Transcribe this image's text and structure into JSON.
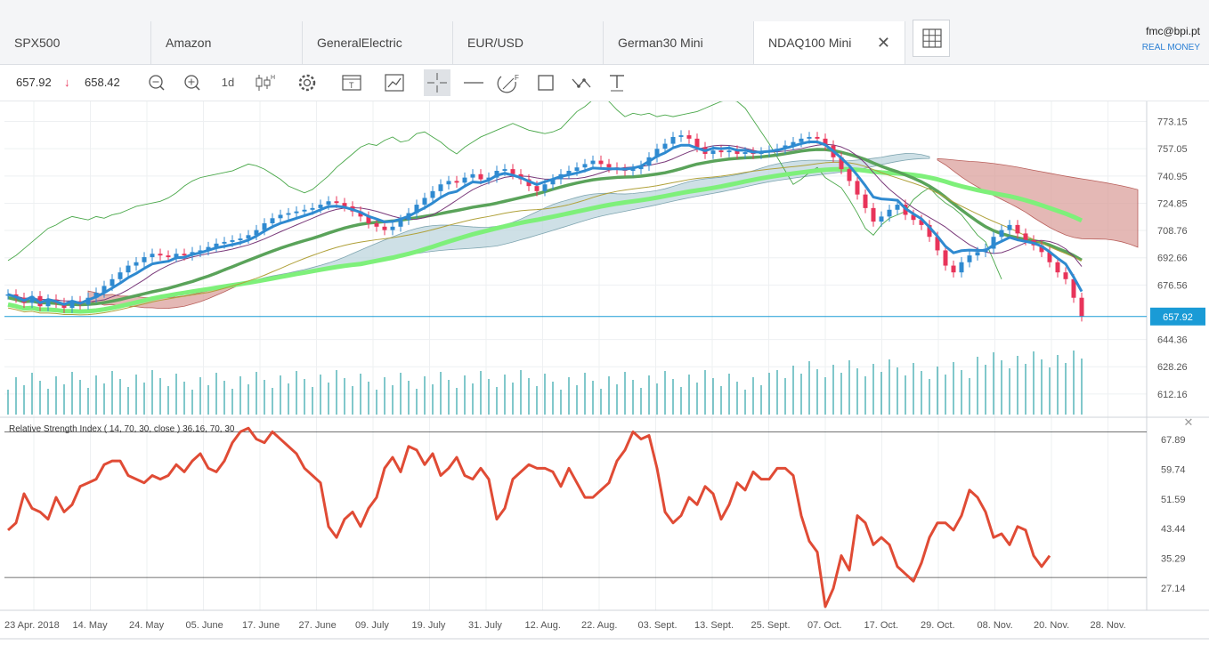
{
  "tabs": [
    {
      "label": "SPX500"
    },
    {
      "label": "Amazon"
    },
    {
      "label": "GeneralElectric"
    },
    {
      "label": "EUR/USD"
    },
    {
      "label": "German30 Mini"
    },
    {
      "label": "NDAQ100 Mini",
      "active": true
    }
  ],
  "user": {
    "email": "fmc@bpi.pt",
    "mode": "REAL MONEY"
  },
  "toolbar": {
    "bid": "657.92",
    "ask": "658.42",
    "timeframe": "1d",
    "arrow": "↓"
  },
  "icons": {
    "zoom_out": "zoom-out-icon",
    "zoom_in": "zoom-in-icon",
    "candles": "candlestick-icon",
    "settings": "gear-icon",
    "template": "template-icon",
    "indicators": "indicator-icon",
    "crosshair": "crosshair-icon",
    "hline": "horizontal-line-icon",
    "fib": "fibonacci-icon",
    "rect": "rectangle-icon",
    "trend": "trendline-icon",
    "text": "text-tool-icon",
    "grid": "grid-layout-icon",
    "close": "close-icon"
  },
  "colors": {
    "up": "#2f8ad0",
    "down": "#e8345a",
    "rsi": "#e04b35",
    "last_price": "#1a9bd6",
    "volume": "#1a9aa0"
  },
  "chart_data": {
    "type": "candlestick",
    "symbol": "NDAQ100 Mini",
    "last_price": 657.92,
    "price_axis": {
      "ylim": [
        600,
        785
      ],
      "ticks": [
        "773.15",
        "757.05",
        "740.95",
        "724.85",
        "708.76",
        "692.66",
        "676.56",
        "657.92",
        "644.36",
        "628.26",
        "612.16"
      ]
    },
    "x_axis": {
      "ticks": [
        "23 Apr. 2018",
        "14. May",
        "24. May",
        "05. June",
        "17. June",
        "27. June",
        "09. July",
        "19. July",
        "31. July",
        "12. Aug.",
        "22. Aug.",
        "03. Sept.",
        "13. Sept.",
        "25. Sept.",
        "07. Oct.",
        "17. Oct.",
        "29. Oct.",
        "08. Nov.",
        "20. Nov.",
        "28. Nov."
      ]
    },
    "close": [
      671,
      669,
      666,
      670,
      664,
      668,
      666,
      663,
      667,
      665,
      669,
      672,
      676,
      680,
      684,
      688,
      690,
      693,
      695,
      694,
      693,
      695,
      694,
      696,
      697,
      699,
      701,
      702,
      703,
      704,
      706,
      709,
      713,
      716,
      718,
      719,
      720,
      721,
      722,
      724,
      726,
      725,
      723,
      720,
      717,
      713,
      711,
      709,
      711,
      715,
      719,
      724,
      728,
      732,
      736,
      738,
      737,
      740,
      742,
      739,
      740,
      744,
      745,
      742,
      739,
      735,
      732,
      736,
      739,
      742,
      744,
      746,
      748,
      750,
      748,
      746,
      745,
      744,
      745,
      747,
      752,
      757,
      760,
      764,
      765,
      763,
      758,
      754,
      756,
      755,
      756,
      754,
      755,
      754,
      755,
      756,
      757,
      759,
      761,
      763,
      764,
      763,
      759,
      752,
      745,
      738,
      730,
      722,
      714,
      717,
      721,
      724,
      718,
      715,
      712,
      705,
      697,
      688,
      684,
      690,
      694,
      696,
      698,
      705,
      709,
      712,
      707,
      703,
      700,
      696,
      690,
      684,
      680,
      669,
      658
    ],
    "rsi": {
      "label": "Relative Strength Index ( 14, 70, 30, close ) 36.16, 70, 30",
      "levels": [
        70,
        30
      ],
      "ylim": [
        21,
        74
      ],
      "ticks": [
        "67.89",
        "59.74",
        "51.59",
        "43.44",
        "35.29",
        "27.14"
      ],
      "values": [
        43,
        45,
        53,
        49,
        48,
        46,
        52,
        48,
        50,
        55,
        56,
        57,
        61,
        62,
        62,
        58,
        57,
        56,
        58,
        57,
        58,
        61,
        59,
        62,
        64,
        60,
        59,
        62,
        67,
        70,
        71,
        68,
        67,
        70,
        68,
        66,
        64,
        60,
        58,
        56,
        44,
        41,
        46,
        48,
        44,
        49,
        52,
        60,
        63,
        59,
        66,
        65,
        61,
        64,
        58,
        60,
        63,
        58,
        57,
        60,
        57,
        46,
        49,
        57,
        59,
        61,
        60,
        60,
        59,
        55,
        60,
        56,
        52,
        52,
        54,
        56,
        62,
        65,
        70,
        68,
        69,
        60,
        48,
        45,
        47,
        52,
        50,
        55,
        53,
        46,
        50,
        56,
        54,
        59,
        57,
        57,
        60,
        60,
        58,
        47,
        40,
        37,
        22,
        27,
        36,
        32,
        47,
        45,
        39,
        41,
        39,
        33,
        31,
        29,
        34,
        41,
        45,
        45,
        43,
        47,
        54,
        52,
        48,
        41,
        42,
        39,
        44,
        43,
        36,
        33,
        36
      ]
    }
  }
}
